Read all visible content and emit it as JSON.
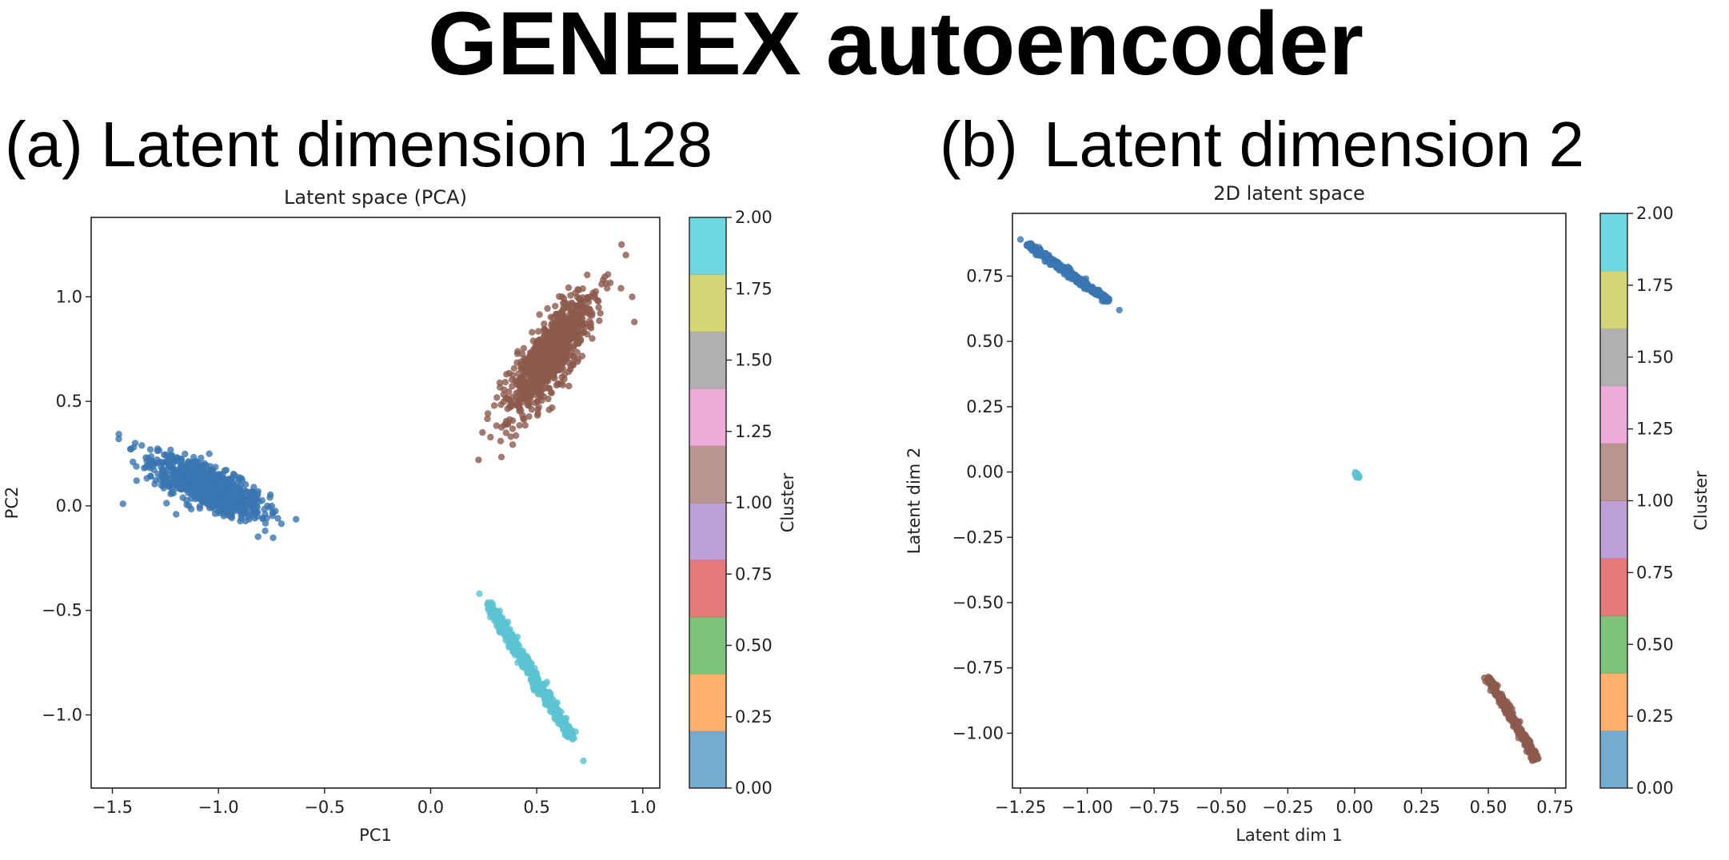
{
  "figure_title": "GENEEX autoencoder",
  "chart_data": [
    {
      "type": "scatter",
      "panel_label": "(a)",
      "panel_heading": "Latent dimension 128",
      "title": "Latent space (PCA)",
      "xlabel": "PC1",
      "ylabel": "PC2",
      "xlim": [
        -1.6,
        1.08
      ],
      "ylim": [
        -1.35,
        1.38
      ],
      "xticks": [
        -1.5,
        -1.0,
        -0.5,
        0.0,
        0.5,
        1.0
      ],
      "xtick_labels": [
        "−1.5",
        "−1.0",
        "−0.5",
        "0.0",
        "0.5",
        "1.0"
      ],
      "yticks": [
        -1.0,
        -0.5,
        0.0,
        0.5,
        1.0
      ],
      "ytick_labels": [
        "−1.0",
        "−0.5",
        "0.0",
        "0.5",
        "1.0"
      ],
      "colorbar": {
        "label": "Cluster",
        "range": [
          0,
          2
        ],
        "ticks": [
          "0.00",
          "0.25",
          "0.50",
          "0.75",
          "1.00",
          "1.25",
          "1.50",
          "1.75",
          "2.00"
        ]
      },
      "clusters": [
        {
          "cluster": 0,
          "color": "#3a76b0",
          "kind": "gaussian",
          "center": [
            -1.05,
            0.09
          ],
          "angle_deg": -25,
          "sd_major": 0.14,
          "sd_minor": 0.045,
          "n": 900,
          "extra": [
            [
              -1.47,
              0.32
            ],
            [
              -1.45,
              0.01
            ],
            [
              -1.4,
              0.28
            ],
            [
              -0.72,
              -0.06
            ],
            [
              -0.78,
              -0.04
            ]
          ]
        },
        {
          "cluster": 1,
          "color": "#8c5a4c",
          "kind": "gaussian",
          "center": [
            0.56,
            0.72
          ],
          "angle_deg": 57,
          "sd_major": 0.16,
          "sd_minor": 0.05,
          "n": 900,
          "extra": [
            [
              0.9,
              1.25
            ],
            [
              0.92,
              1.2
            ],
            [
              0.33,
              0.31
            ],
            [
              0.3,
              0.48
            ],
            [
              0.95,
              1.0
            ],
            [
              0.96,
              0.88
            ]
          ]
        },
        {
          "cluster": 2,
          "color": "#5bc3d2",
          "kind": "line",
          "start": [
            0.28,
            -0.48
          ],
          "end": [
            0.66,
            -1.1
          ],
          "jitter": 0.012,
          "n": 500,
          "extra": [
            [
              0.23,
              -0.42
            ],
            [
              0.72,
              -1.22
            ]
          ]
        }
      ]
    },
    {
      "type": "scatter",
      "panel_label": "(b)",
      "panel_heading": "Latent dimension 2",
      "title": "2D latent space",
      "xlabel": "Latent dim 1",
      "ylabel": "Latent dim 2",
      "xlim": [
        -1.28,
        0.79
      ],
      "ylim": [
        -1.21,
        0.99
      ],
      "xticks": [
        -1.25,
        -1.0,
        -0.75,
        -0.5,
        -0.25,
        0.0,
        0.25,
        0.5,
        0.75
      ],
      "xtick_labels": [
        "−1.25",
        "−1.00",
        "−0.75",
        "−0.50",
        "−0.25",
        "0.00",
        "0.25",
        "0.50",
        "0.75"
      ],
      "yticks": [
        -1.0,
        -0.75,
        -0.5,
        -0.25,
        0.0,
        0.25,
        0.5,
        0.75
      ],
      "ytick_labels": [
        "−1.00",
        "−0.75",
        "−0.50",
        "−0.25",
        "0.00",
        "0.25",
        "0.50",
        "0.75"
      ],
      "colorbar": {
        "label": "Cluster",
        "range": [
          0,
          2
        ],
        "ticks": [
          "0.00",
          "0.25",
          "0.50",
          "0.75",
          "1.00",
          "1.25",
          "1.50",
          "1.75",
          "2.00"
        ]
      },
      "clusters": [
        {
          "cluster": 0,
          "color": "#3a76b0",
          "kind": "line",
          "start": [
            -1.22,
            0.87
          ],
          "end": [
            -0.92,
            0.655
          ],
          "jitter": 0.006,
          "n": 400,
          "extra": [
            [
              -1.25,
              0.89
            ],
            [
              -0.88,
              0.62
            ]
          ]
        },
        {
          "cluster": 2,
          "color": "#5bc3d2",
          "kind": "line",
          "start": [
            0.005,
            -0.005
          ],
          "end": [
            0.015,
            -0.02
          ],
          "jitter": 0.003,
          "n": 40,
          "extra": []
        },
        {
          "cluster": 1,
          "color": "#8c5a4c",
          "kind": "line",
          "start": [
            0.5,
            -0.79
          ],
          "end": [
            0.68,
            -1.1
          ],
          "jitter": 0.006,
          "n": 400,
          "extra": []
        }
      ]
    }
  ],
  "colormap": [
    "#1f77b4",
    "#ff7f0e",
    "#2ca02c",
    "#d62728",
    "#9467bd",
    "#8c564b",
    "#e377c2",
    "#7f7f7f",
    "#bcbd22",
    "#17becf"
  ]
}
